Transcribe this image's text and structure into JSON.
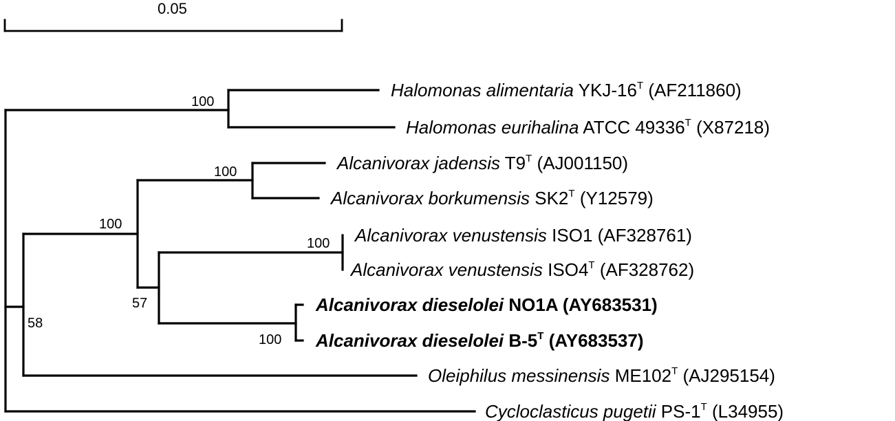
{
  "scale_bar": {
    "label": "0.05"
  },
  "taxa": [
    {
      "genus": "Halomonas alimentaria",
      "strain": "YKJ-16",
      "type_strain": true,
      "accession": "(AF211860)",
      "bold": false
    },
    {
      "genus": "Halomonas eurihalina",
      "strain": "ATCC 49336",
      "type_strain": true,
      "accession": "(X87218)",
      "bold": false
    },
    {
      "genus": "Alcanivorax jadensis",
      "strain": "T9",
      "type_strain": true,
      "accession": "(AJ001150)",
      "bold": false
    },
    {
      "genus": "Alcanivorax borkumensis",
      "strain": "SK2",
      "type_strain": true,
      "accession": "(Y12579)",
      "bold": false
    },
    {
      "genus": "Alcanivorax venustensis",
      "strain": "ISO1",
      "type_strain": false,
      "accession": "(AF328761)",
      "bold": false
    },
    {
      "genus": "Alcanivorax venustensis",
      "strain": "ISO4",
      "type_strain": true,
      "accession": "(AF328762)",
      "bold": false
    },
    {
      "genus": "Alcanivorax dieselolei",
      "strain": "NO1A",
      "type_strain": false,
      "accession": "(AY683531)",
      "bold": true
    },
    {
      "genus": "Alcanivorax dieselolei",
      "strain": "B-5",
      "type_strain": true,
      "accession": "(AY683537)",
      "bold": true
    },
    {
      "genus": "Oleiphilus messinensis",
      "strain": "ME102",
      "type_strain": true,
      "accession": "(AJ295154)",
      "bold": false
    },
    {
      "genus": "Cycloclasticus pugetii",
      "strain": "PS-1",
      "type_strain": true,
      "accession": "(L34955)",
      "bold": false
    }
  ],
  "type_mark": "T",
  "bootstrap": {
    "halomonas": "100",
    "jadensis_borkumensis": "100",
    "alcanivorax_upper": "100",
    "venustensis": "100",
    "alcanivorax_lower": "57",
    "dieselolei": "100",
    "ingroup": "58"
  }
}
